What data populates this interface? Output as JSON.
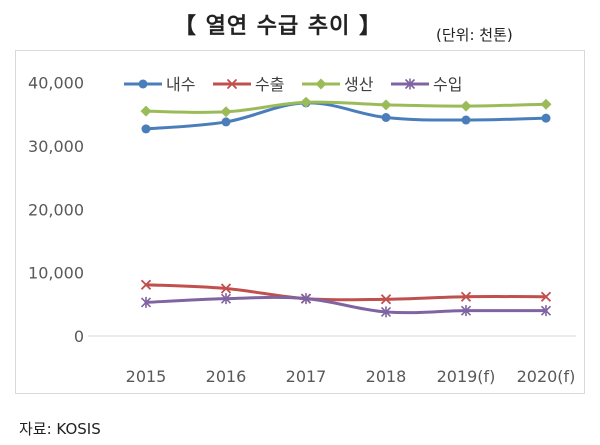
{
  "title": "【 열연 수급 추이 】",
  "unit": "(단위: 천톤)",
  "source": "자료: KOSIS",
  "chart_data": {
    "type": "line",
    "categories": [
      "2015",
      "2016",
      "2017",
      "2018",
      "2019(f)",
      "2020(f)"
    ],
    "series": [
      {
        "name": "내수",
        "color": "#4a7ebb",
        "marker": "circle",
        "values": [
          32700,
          33800,
          36800,
          34500,
          34100,
          34400
        ]
      },
      {
        "name": "수출",
        "color": "#c0504d",
        "marker": "x",
        "values": [
          8100,
          7500,
          5900,
          5800,
          6200,
          6200
        ]
      },
      {
        "name": "생산",
        "color": "#9bbb59",
        "marker": "diamond",
        "values": [
          35500,
          35400,
          36900,
          36500,
          36300,
          36600
        ]
      },
      {
        "name": "수입",
        "color": "#8064a2",
        "marker": "asterisk",
        "values": [
          5300,
          5900,
          5900,
          3800,
          4000,
          4000
        ]
      }
    ],
    "ylim": [
      0,
      45000
    ],
    "yticks": [
      0,
      10000,
      20000,
      30000,
      40000
    ],
    "ytick_labels": [
      "0",
      "10,000",
      "20,000",
      "30,000",
      "40,000"
    ],
    "grid": false,
    "legend": "top"
  }
}
